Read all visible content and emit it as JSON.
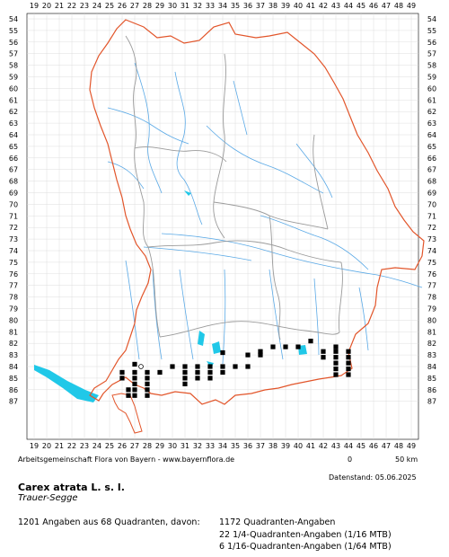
{
  "grid": {
    "x_labels": [
      "19",
      "20",
      "21",
      "22",
      "23",
      "24",
      "25",
      "26",
      "27",
      "28",
      "29",
      "30",
      "31",
      "32",
      "33",
      "34",
      "35",
      "36",
      "37",
      "38",
      "39",
      "40",
      "41",
      "42",
      "43",
      "44",
      "45",
      "46",
      "47",
      "48",
      "49"
    ],
    "y_labels": [
      "54",
      "55",
      "56",
      "57",
      "58",
      "59",
      "60",
      "61",
      "62",
      "63",
      "64",
      "65",
      "66",
      "67",
      "68",
      "69",
      "70",
      "71",
      "72",
      "73",
      "74",
      "75",
      "76",
      "77",
      "78",
      "79",
      "80",
      "81",
      "82",
      "83",
      "84",
      "85",
      "86",
      "87"
    ]
  },
  "colors": {
    "state_border": "#e2552a",
    "district_border": "#9a9a9a",
    "rivers": "#5aa9e6",
    "lakes": "#20c8e8",
    "records": "#000000"
  },
  "records": {
    "filled_squares": [
      [
        27,
        83.8
      ],
      [
        26,
        84.5
      ],
      [
        27,
        84.5
      ],
      [
        28,
        84.5
      ],
      [
        29,
        84.5
      ],
      [
        26,
        85
      ],
      [
        27,
        85
      ],
      [
        28,
        85
      ],
      [
        27,
        85.5
      ],
      [
        28,
        85.5
      ],
      [
        26.5,
        86
      ],
      [
        27,
        86
      ],
      [
        28,
        86
      ],
      [
        26.5,
        86.5
      ],
      [
        27,
        86.5
      ],
      [
        28,
        86.5
      ],
      [
        30,
        84
      ],
      [
        31,
        84
      ],
      [
        32,
        84
      ],
      [
        33,
        84
      ],
      [
        34,
        84
      ],
      [
        35,
        84
      ],
      [
        36,
        84
      ],
      [
        31,
        84.5
      ],
      [
        32,
        84.5
      ],
      [
        33,
        84.5
      ],
      [
        34,
        84.5
      ],
      [
        31,
        85
      ],
      [
        32,
        85
      ],
      [
        33,
        85
      ],
      [
        31,
        85.5
      ],
      [
        34,
        82.8
      ],
      [
        36,
        83
      ],
      [
        37,
        83
      ],
      [
        37,
        82.7
      ],
      [
        38,
        82.3
      ],
      [
        39,
        82.3
      ],
      [
        40,
        82.3
      ],
      [
        41,
        81.8
      ],
      [
        42,
        82.7
      ],
      [
        43,
        82.3
      ],
      [
        43,
        82.7
      ],
      [
        44,
        82.7
      ],
      [
        42,
        83.2
      ],
      [
        43,
        83.2
      ],
      [
        44,
        83.2
      ],
      [
        43,
        83.7
      ],
      [
        44,
        83.7
      ],
      [
        43,
        84.2
      ],
      [
        44,
        84.2
      ],
      [
        43,
        84.7
      ],
      [
        44,
        84.7
      ]
    ],
    "open_circles": [
      [
        27.5,
        84
      ]
    ]
  },
  "footer": {
    "credit": "Arbeitsgemeinschaft Flora von Bayern - www.bayernflora.de",
    "scale_left": "0",
    "scale_right": "50 km",
    "date": "Datenstand: 05.06.2025"
  },
  "species": {
    "name": "Carex atrata L. s. l.",
    "common": "Trauer-Segge"
  },
  "stats": {
    "summary": "1201 Angaben aus 68 Quadranten, davon:",
    "q1": "1172 Quadranten-Angaben",
    "q2": "22 1/4-Quadranten-Angaben (1/16 MTB)",
    "q3": "6 1/16-Quadranten-Angaben (1/64 MTB)"
  }
}
